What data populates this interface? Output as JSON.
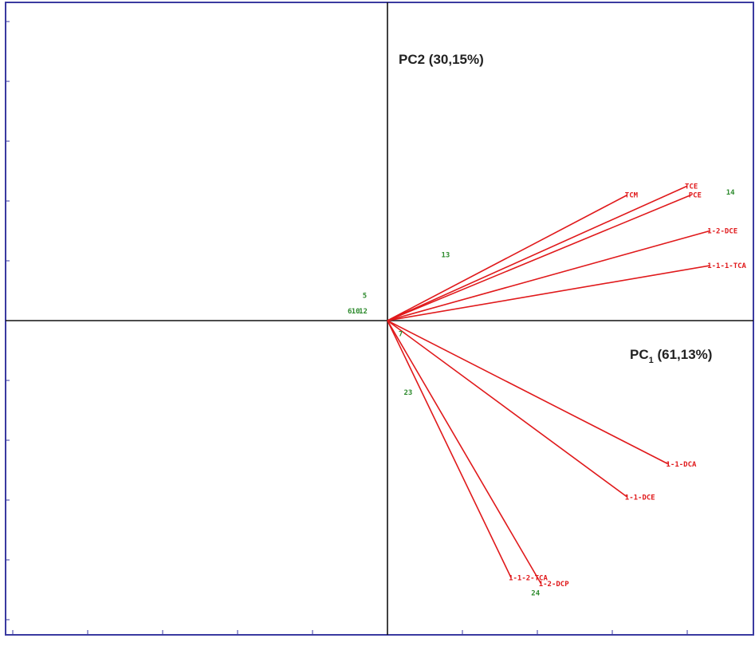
{
  "chart_data": {
    "type": "scatter",
    "subtype": "pca-biplot",
    "title": "",
    "xlabel": "PC1 (61,13%)",
    "xlabel_parts": {
      "prefix": "PC",
      "subscript": "1",
      "suffix": " (61,13%)"
    },
    "ylabel": "PC2 (30,15%)",
    "xlim": [
      -5,
      5
    ],
    "ylim": [
      -5,
      5
    ],
    "grid": false,
    "colors": {
      "frame": "#3a3aa0",
      "axes": "#111111",
      "loading_vectors": "#e0191b",
      "observations": "#2e8b2e"
    },
    "loadings": [
      {
        "label": "TCM",
        "x": 3.2,
        "y": 2.1
      },
      {
        "label": "TCE",
        "x": 4.0,
        "y": 2.25
      },
      {
        "label": "PCE",
        "x": 4.05,
        "y": 2.1
      },
      {
        "label": "1-2-DCE",
        "x": 4.3,
        "y": 1.5
      },
      {
        "label": "1-1-1-TCA",
        "x": 4.3,
        "y": 0.92
      },
      {
        "label": "1-1-DCA",
        "x": 3.75,
        "y": -2.4
      },
      {
        "label": "1-1-DCE",
        "x": 3.2,
        "y": -2.95
      },
      {
        "label": "1-2-DCP",
        "x": 2.05,
        "y": -4.4
      },
      {
        "label": "1-1-2-TCA",
        "x": 1.65,
        "y": -4.3
      }
    ],
    "observations": [
      {
        "label": "14",
        "x": 4.55,
        "y": 2.15
      },
      {
        "label": "13",
        "x": 0.75,
        "y": 1.1
      },
      {
        "label": "5",
        "x": -0.3,
        "y": 0.42
      },
      {
        "label": "12",
        "x": -0.35,
        "y": 0.16
      },
      {
        "label": "10",
        "x": -0.45,
        "y": 0.16
      },
      {
        "label": "6",
        "x": -0.5,
        "y": 0.16
      },
      {
        "label": "7",
        "x": 0.18,
        "y": -0.22
      },
      {
        "label": "23",
        "x": 0.25,
        "y": -1.2
      },
      {
        "label": "24",
        "x": 1.95,
        "y": -4.55
      }
    ]
  }
}
